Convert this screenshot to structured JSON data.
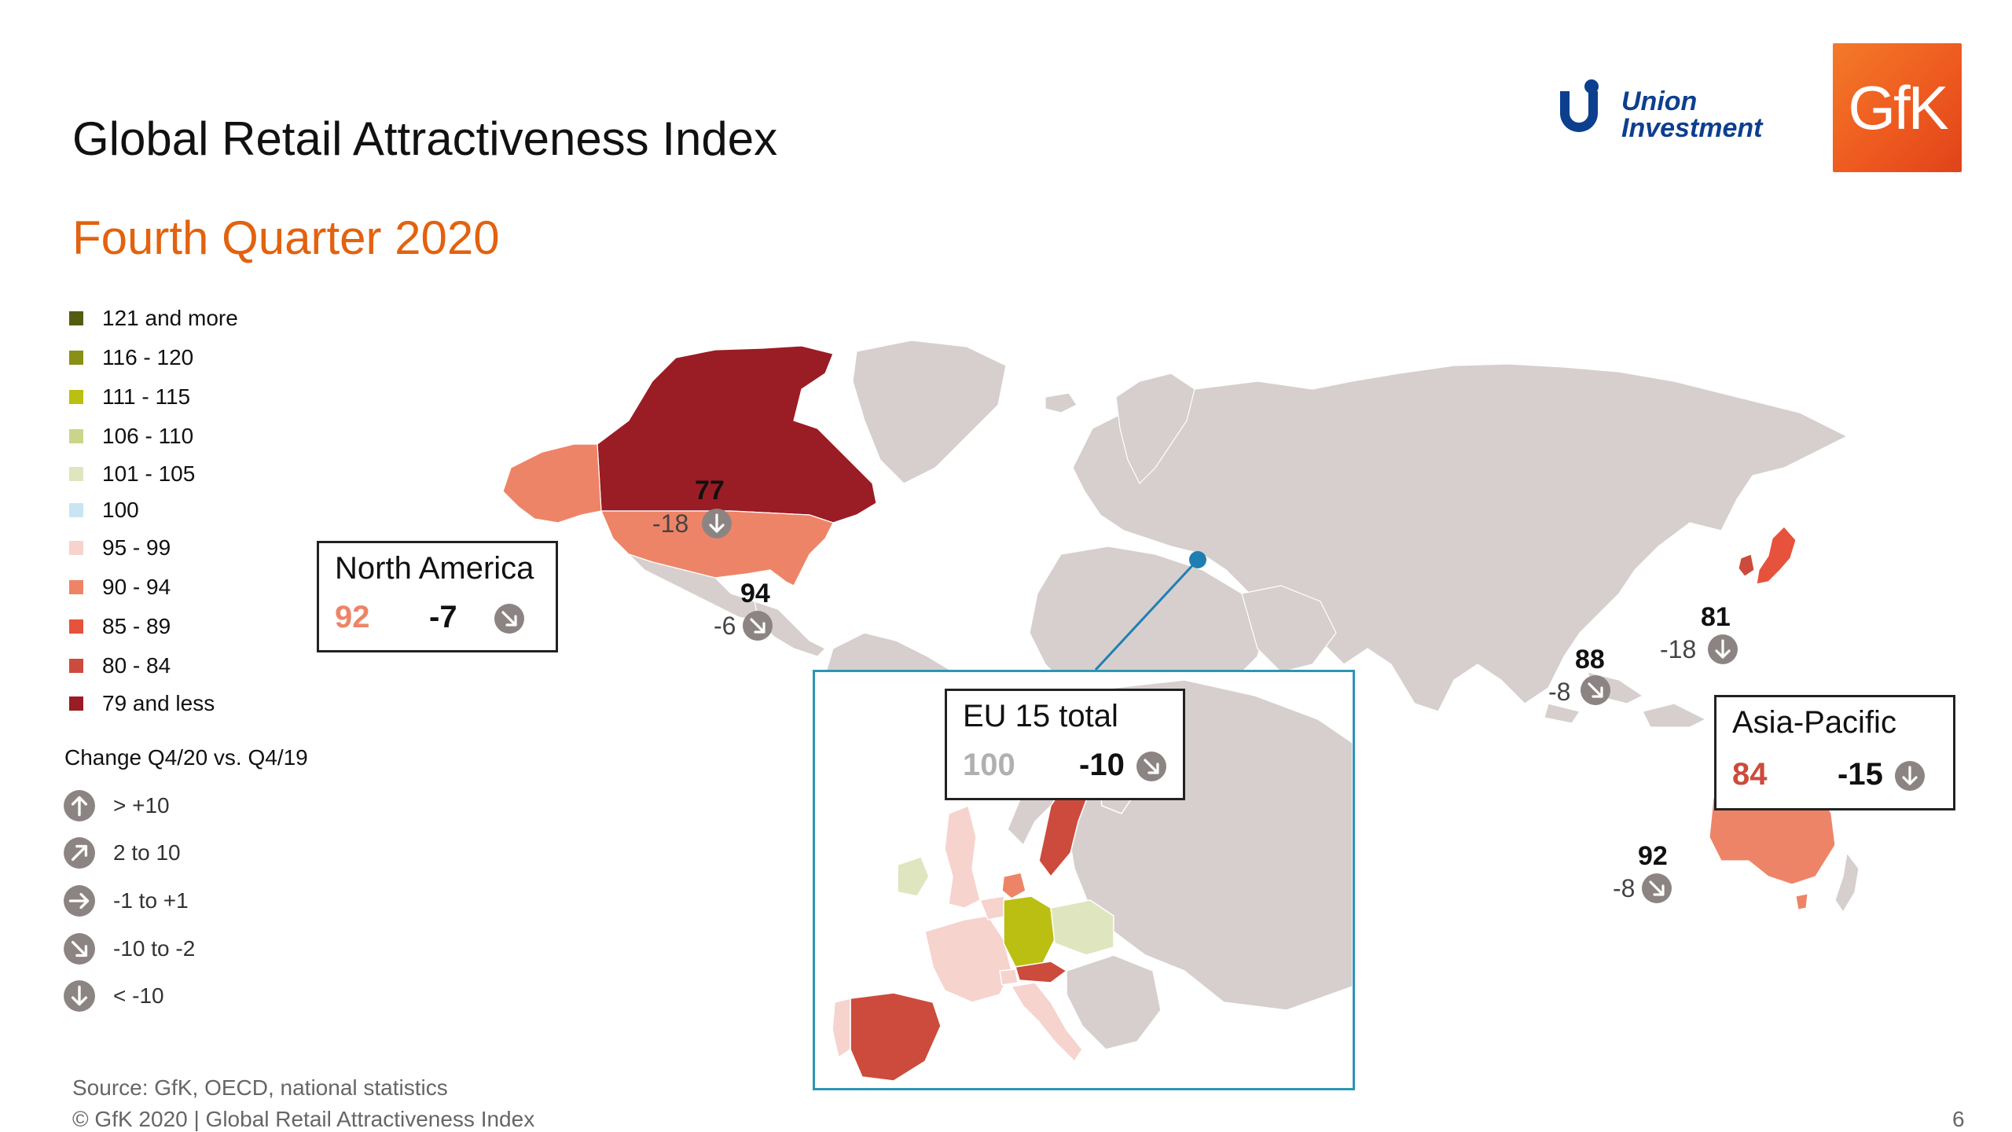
{
  "header": {
    "title": "Global Retail Attractiveness Index",
    "subtitle": "Fourth Quarter 2020",
    "subtitle_color": "#e2620f"
  },
  "logos": {
    "union_investment": {
      "line1": "Union",
      "line2": "Investment",
      "color": "#0d3f8f"
    },
    "gfk": {
      "text": "GfK",
      "color": "#ef5a1c"
    }
  },
  "legend": {
    "items": [
      {
        "label": "121 and more",
        "color": "#545c12"
      },
      {
        "label": "116 - 120",
        "color": "#8a8f16"
      },
      {
        "label": "111 - 115",
        "color": "#bbbf12"
      },
      {
        "label": "106 - 110",
        "color": "#cbd58a"
      },
      {
        "label": "101 - 105",
        "color": "#dfe6bf"
      },
      {
        "label": "100",
        "color": "#c9e5f3"
      },
      {
        "label": "95 - 99",
        "color": "#f6d3cd"
      },
      {
        "label": "90 - 94",
        "color": "#ee8467"
      },
      {
        "label": "85 - 89",
        "color": "#e6523b"
      },
      {
        "label": "80 - 84",
        "color": "#cc4b3c"
      },
      {
        "label": "79 and less",
        "color": "#9a1c24"
      }
    ],
    "change_title": "Change Q4/20 vs. Q4/19",
    "change_items": [
      {
        "label": "> +10",
        "icon": "arrow-up-icon"
      },
      {
        "label": "2 to 10",
        "icon": "arrow-up-right-icon"
      },
      {
        "label": "-1 to +1",
        "icon": "arrow-right-icon"
      },
      {
        "label": "-10 to -2",
        "icon": "arrow-down-right-icon"
      },
      {
        "label": "< -10",
        "icon": "arrow-down-icon"
      }
    ]
  },
  "regions": {
    "north_america": {
      "name": "North America",
      "index": "92",
      "change": "-7",
      "index_color": "#ee8467"
    },
    "asia_pacific": {
      "name": "Asia-Pacific",
      "index": "84",
      "change": "-15",
      "index_color": "#cc4b3c"
    },
    "eu15": {
      "name": "EU 15 total",
      "index": "100",
      "change": "-10",
      "index_color": "#b0b0b0"
    }
  },
  "countries": {
    "canada": {
      "index": "77",
      "change": "-18"
    },
    "usa": {
      "index": "94",
      "change": "-6"
    },
    "japan": {
      "index": "81",
      "change": "-18"
    },
    "south_korea": {
      "index": "88",
      "change": "-8"
    },
    "australia": {
      "index": "92",
      "change": "-8"
    }
  },
  "colors": {
    "land_grey": "#d6cfce",
    "icon_grey": "#8c8483",
    "inset_border": "#2a96b5"
  },
  "footer": {
    "source": "Source: GfK, OECD, national statistics",
    "copyright": "© GfK 2020 | Global Retail Attractiveness Index",
    "page_number": "6"
  }
}
